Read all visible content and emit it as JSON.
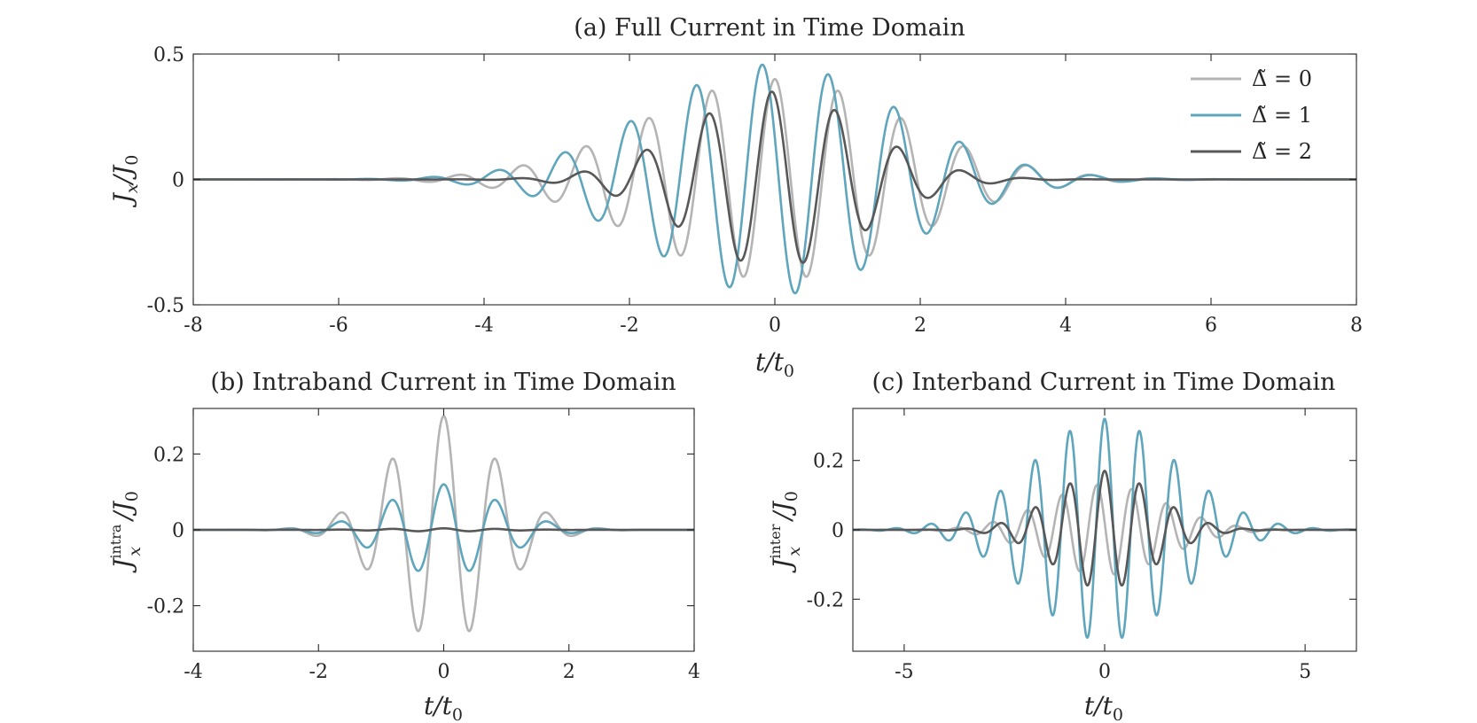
{
  "chart_data": [
    {
      "id": "a",
      "type": "line",
      "title": "(a) Full Current in Time Domain",
      "xlabel_main": "t/t",
      "xlabel_sub": "0",
      "ylabel_main": "J",
      "ylabel_sub1": "x",
      "ylabel_rest": "/J",
      "ylabel_sub2": "0",
      "xlim": [
        -8,
        8
      ],
      "ylim": [
        -0.5,
        0.5
      ],
      "xticks": [
        -8,
        -6,
        -4,
        -2,
        0,
        2,
        4,
        6,
        8
      ],
      "xtick_labels": [
        "-8",
        "-6",
        "-4",
        "-2",
        "0",
        "2",
        "4",
        "6",
        "8"
      ],
      "yticks": [
        -0.5,
        0,
        0.5
      ],
      "ytick_labels": [
        "-0.5",
        "0",
        "0.5"
      ],
      "legend": {
        "placement": "top-right",
        "entries": [
          "Δ̃ = 0",
          "Δ̃ = 1",
          "Δ̃ = 2"
        ]
      },
      "series": [
        {
          "name": "Δ̃ = 0",
          "color": "#b4b4b4",
          "amplitude": 0.4,
          "sigma": 1.75,
          "frequency": 2.3,
          "phase": 0.0
        },
        {
          "name": "Δ̃ = 1",
          "color": "#5fa6bd",
          "amplitude": 0.46,
          "sigma": 1.7,
          "frequency": 2.2,
          "phase": 1.2
        },
        {
          "name": "Δ̃ = 2",
          "color": "#585858",
          "amplitude": 0.35,
          "sigma": 1.2,
          "frequency": 2.3,
          "phase": 0.3
        }
      ]
    },
    {
      "id": "b",
      "type": "line",
      "title": "(b) Intraband Current in Time Domain",
      "xlabel_main": "t/t",
      "xlabel_sub": "0",
      "ylabel_main": "J",
      "ylabel_sup": "intra",
      "ylabel_sub1": "x",
      "ylabel_rest": "/J",
      "ylabel_sub2": "0",
      "xlim": [
        -4,
        4
      ],
      "ylim": [
        -0.32,
        0.32
      ],
      "xticks": [
        -4,
        -2,
        0,
        2,
        4
      ],
      "xtick_labels": [
        "-4",
        "-2",
        "0",
        "2",
        "4"
      ],
      "yticks": [
        -0.2,
        0,
        0.2
      ],
      "ytick_labels": [
        "-0.2",
        "0",
        "0.2"
      ],
      "series": [
        {
          "name": "Δ̃ = 0",
          "color": "#b4b4b4",
          "amplitude": 0.3,
          "sigma": 0.85,
          "frequency": 2.4,
          "phase": 0.0
        },
        {
          "name": "Δ̃ = 1",
          "color": "#5fa6bd",
          "amplitude": 0.12,
          "sigma": 0.9,
          "frequency": 2.4,
          "phase": 0.0
        },
        {
          "name": "Δ̃ = 2",
          "color": "#585858",
          "amplitude": 0.004,
          "sigma": 0.9,
          "frequency": 2.4,
          "phase": 0.0
        }
      ]
    },
    {
      "id": "c",
      "type": "line",
      "title": "(c) Interband Current in Time Domain",
      "xlabel_main": "t/t",
      "xlabel_sub": "0",
      "ylabel_main": "J",
      "ylabel_sup": "inter",
      "ylabel_sub1": "x",
      "ylabel_rest": "/J",
      "ylabel_sub2": "0",
      "xlim": [
        -6.28,
        6.28
      ],
      "ylim": [
        -0.35,
        0.35
      ],
      "xticks": [
        -5,
        0,
        5
      ],
      "xtick_labels": [
        "-5",
        "0",
        "5"
      ],
      "yticks": [
        -0.2,
        0,
        0.2
      ],
      "ytick_labels": [
        "-0.2",
        "0",
        "0.2"
      ],
      "series": [
        {
          "name": "Δ̃ = 0",
          "color": "#b4b4b4",
          "amplitude": 0.13,
          "sigma": 1.5,
          "frequency": 2.3,
          "phase": 1.4
        },
        {
          "name": "Δ̃ = 1",
          "color": "#5fa6bd",
          "amplitude": 0.32,
          "sigma": 1.8,
          "frequency": 2.3,
          "phase": 0.0
        },
        {
          "name": "Δ̃ = 2",
          "color": "#585858",
          "amplitude": 0.17,
          "sigma": 1.25,
          "frequency": 2.3,
          "phase": 0.0
        }
      ]
    }
  ]
}
